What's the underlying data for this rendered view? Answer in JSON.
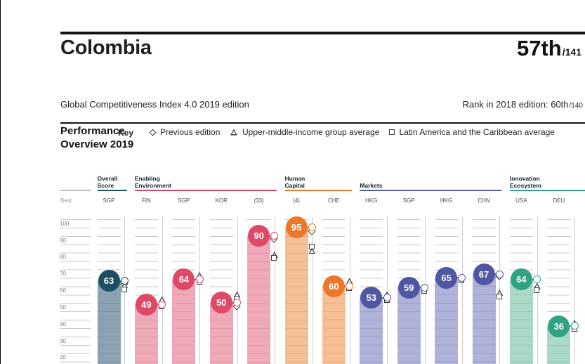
{
  "header": {
    "country": "Colombia",
    "rank": "57th",
    "rank_total": "/141",
    "subtitle": "Global Competitiveness Index 4.0 2019 edition",
    "prev_rank_text": "Rank in 2018 edition: 60th",
    "prev_rank_total": "/140"
  },
  "section": {
    "title_line1": "Performance",
    "title_line2": "Overview 2019",
    "key_label": "Key"
  },
  "legend": {
    "items": [
      {
        "shape": "diamond",
        "label": "Previous edition"
      },
      {
        "shape": "triangle",
        "label": "Upper-middle-income group average"
      },
      {
        "shape": "square",
        "label": "Latin America and the Caribbean average"
      }
    ]
  },
  "chart_data": {
    "type": "bar",
    "title": "Performance Overview 2019",
    "ylim": [
      13,
      100
    ],
    "yticks": [
      100,
      90,
      80,
      70,
      60,
      50,
      40,
      30,
      20
    ],
    "best_row_label": "Best",
    "grid": "horizontal, every 5 units",
    "legend_note": "dot = Colombia 2019 score; diamond = previous edition; triangle = upper-middle-income group average; square = Latin America and the Caribbean average",
    "groups": [
      {
        "label": "Overall\nScore",
        "circle": "#1D4F63",
        "bar": "#8CA3B2",
        "line": "#1D4F63",
        "cols": [
          0,
          0
        ]
      },
      {
        "label": "Enabling\nEnvironment",
        "circle": "#DC4A68",
        "bar": "#EFA9B8",
        "line": "#CE4665",
        "cols": [
          1,
          4
        ]
      },
      {
        "label": "Human\nCapital",
        "circle": "#EA772A",
        "bar": "#F5C095",
        "line": "#E8772B",
        "cols": [
          5,
          6
        ]
      },
      {
        "label": "Markets",
        "circle": "#5156A2",
        "bar": "#AFB2D9",
        "line": "#565CA8",
        "cols": [
          7,
          10
        ]
      },
      {
        "label": "Innovation\nEcosystem",
        "circle": "#2FA384",
        "bar": "#AAD9C7",
        "line": "#3AA487",
        "cols": [
          11,
          12
        ]
      }
    ],
    "columns": [
      {
        "best": "SGP",
        "value": 63,
        "group": 0,
        "markers": [
          {
            "t": "dot",
            "v": 63
          },
          {
            "t": "diamond",
            "v": 61
          },
          {
            "t": "triangle",
            "v": 60.5
          },
          {
            "t": "square",
            "v": 57.8
          }
        ]
      },
      {
        "best": "FIN",
        "value": 49,
        "group": 1,
        "markers": [
          {
            "t": "triangle",
            "v": 52
          },
          {
            "t": "dot",
            "v": 49
          },
          {
            "t": "square",
            "v": 47.8
          }
        ]
      },
      {
        "best": "SGP",
        "value": 64,
        "group": 1,
        "markers": [
          {
            "t": "triangle",
            "v": 66.5
          },
          {
            "t": "dot",
            "v": 64
          },
          {
            "t": "square",
            "v": 62.5
          }
        ]
      },
      {
        "best": "KOR",
        "value": 50,
        "group": 1,
        "markers": [
          {
            "t": "triangle",
            "v": 55
          },
          {
            "t": "square",
            "v": 52.2
          },
          {
            "t": "dot",
            "v": 50
          },
          {
            "t": "diamond",
            "v": 47.6
          }
        ]
      },
      {
        "best": "(33)",
        "value": 90,
        "group": 1,
        "markers": [
          {
            "t": "dot",
            "v": 90
          },
          {
            "t": "diamond",
            "v": 87.8
          },
          {
            "t": "triangle",
            "v": 78.8
          },
          {
            "t": "square",
            "v": 76.6
          }
        ]
      },
      {
        "best": "(4)",
        "value": 95,
        "group": 2,
        "markers": [
          {
            "t": "dot",
            "v": 95
          },
          {
            "t": "diamond",
            "v": 92.6
          },
          {
            "t": "square",
            "v": 83.4
          },
          {
            "t": "triangle",
            "v": 81
          }
        ]
      },
      {
        "best": "CHE",
        "value": 60,
        "group": 2,
        "markers": [
          {
            "t": "triangle",
            "v": 63
          },
          {
            "t": "dot",
            "v": 60
          },
          {
            "t": "square",
            "v": 58.6
          }
        ]
      },
      {
        "best": "HKG",
        "value": 53,
        "group": 3,
        "markers": [
          {
            "t": "triangle",
            "v": 55
          },
          {
            "t": "dot",
            "v": 53
          },
          {
            "t": "square",
            "v": 51.6
          }
        ]
      },
      {
        "best": "SGP",
        "value": 59,
        "group": 3,
        "markers": [
          {
            "t": "dot",
            "v": 59
          },
          {
            "t": "square",
            "v": 57
          }
        ]
      },
      {
        "best": "HKG",
        "value": 65,
        "group": 3,
        "markers": [
          {
            "t": "dot",
            "v": 65
          },
          {
            "t": "square",
            "v": 63
          }
        ]
      },
      {
        "best": "CHN",
        "value": 67,
        "group": 3,
        "markers": [
          {
            "t": "dot",
            "v": 67
          },
          {
            "t": "diamond",
            "v": 65.6
          },
          {
            "t": "triangle",
            "v": 56
          },
          {
            "t": "square",
            "v": 53.4
          }
        ]
      },
      {
        "best": "USA",
        "value": 64,
        "group": 4,
        "markers": [
          {
            "t": "dot",
            "v": 64
          },
          {
            "t": "triangle",
            "v": 60
          },
          {
            "t": "square",
            "v": 57.2
          }
        ]
      },
      {
        "best": "DEU",
        "value": 36,
        "group": 4,
        "markers": [
          {
            "t": "triangle",
            "v": 38
          },
          {
            "t": "dot",
            "v": 36.3
          },
          {
            "t": "square",
            "v": 34.2
          }
        ]
      }
    ]
  }
}
